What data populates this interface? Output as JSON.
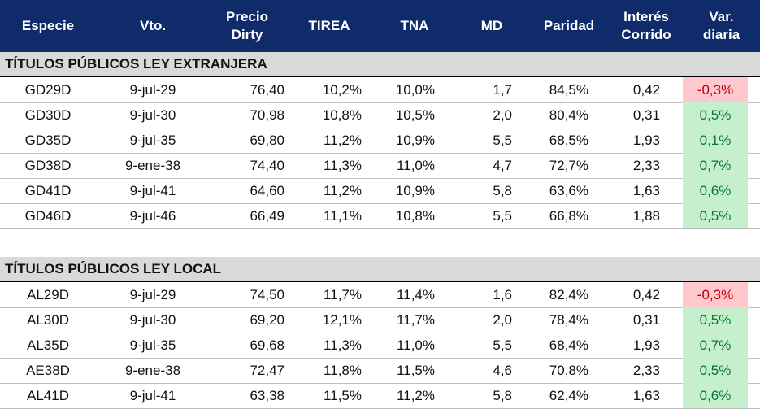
{
  "header": {
    "especie": "Especie",
    "vto": "Vto.",
    "precio": "Precio\nDirty",
    "tirea": "TIREA",
    "tna": "TNA",
    "md": "MD",
    "paridad": "Paridad",
    "interes": "Interés\nCorrido",
    "var": "Var.\ndiaria"
  },
  "sections": [
    {
      "title": "TÍTULOS PÚBLICOS LEY EXTRANJERA",
      "rows": [
        {
          "especie": "GD29D",
          "vto": "9-jul-29",
          "precio": "76,40",
          "tirea": "10,2%",
          "tna": "10,0%",
          "md": "1,7",
          "paridad": "84,5%",
          "interes": "0,42",
          "var": "-0,3%",
          "sign": "neg"
        },
        {
          "especie": "GD30D",
          "vto": "9-jul-30",
          "precio": "70,98",
          "tirea": "10,8%",
          "tna": "10,5%",
          "md": "2,0",
          "paridad": "80,4%",
          "interes": "0,31",
          "var": "0,5%",
          "sign": "pos"
        },
        {
          "especie": "GD35D",
          "vto": "9-jul-35",
          "precio": "69,80",
          "tirea": "11,2%",
          "tna": "10,9%",
          "md": "5,5",
          "paridad": "68,5%",
          "interes": "1,93",
          "var": "0,1%",
          "sign": "pos"
        },
        {
          "especie": "GD38D",
          "vto": "9-ene-38",
          "precio": "74,40",
          "tirea": "11,3%",
          "tna": "11,0%",
          "md": "4,7",
          "paridad": "72,7%",
          "interes": "2,33",
          "var": "0,7%",
          "sign": "pos"
        },
        {
          "especie": "GD41D",
          "vto": "9-jul-41",
          "precio": "64,60",
          "tirea": "11,2%",
          "tna": "10,9%",
          "md": "5,8",
          "paridad": "63,6%",
          "interes": "1,63",
          "var": "0,6%",
          "sign": "pos"
        },
        {
          "especie": "GD46D",
          "vto": "9-jul-46",
          "precio": "66,49",
          "tirea": "11,1%",
          "tna": "10,8%",
          "md": "5,5",
          "paridad": "66,8%",
          "interes": "1,88",
          "var": "0,5%",
          "sign": "pos"
        }
      ]
    },
    {
      "title": "TÍTULOS PÚBLICOS LEY LOCAL",
      "rows": [
        {
          "especie": "AL29D",
          "vto": "9-jul-29",
          "precio": "74,50",
          "tirea": "11,7%",
          "tna": "11,4%",
          "md": "1,6",
          "paridad": "82,4%",
          "interes": "0,42",
          "var": "-0,3%",
          "sign": "neg"
        },
        {
          "especie": "AL30D",
          "vto": "9-jul-30",
          "precio": "69,20",
          "tirea": "12,1%",
          "tna": "11,7%",
          "md": "2,0",
          "paridad": "78,4%",
          "interes": "0,31",
          "var": "0,5%",
          "sign": "pos"
        },
        {
          "especie": "AL35D",
          "vto": "9-jul-35",
          "precio": "69,68",
          "tirea": "11,3%",
          "tna": "11,0%",
          "md": "5,5",
          "paridad": "68,4%",
          "interes": "1,93",
          "var": "0,7%",
          "sign": "pos"
        },
        {
          "especie": "AE38D",
          "vto": "9-ene-38",
          "precio": "72,47",
          "tirea": "11,8%",
          "tna": "11,5%",
          "md": "4,6",
          "paridad": "70,8%",
          "interes": "2,33",
          "var": "0,5%",
          "sign": "pos"
        },
        {
          "especie": "AL41D",
          "vto": "9-jul-41",
          "precio": "63,38",
          "tirea": "11,5%",
          "tna": "11,2%",
          "md": "5,8",
          "paridad": "62,4%",
          "interes": "1,63",
          "var": "0,6%",
          "sign": "pos"
        }
      ]
    }
  ]
}
